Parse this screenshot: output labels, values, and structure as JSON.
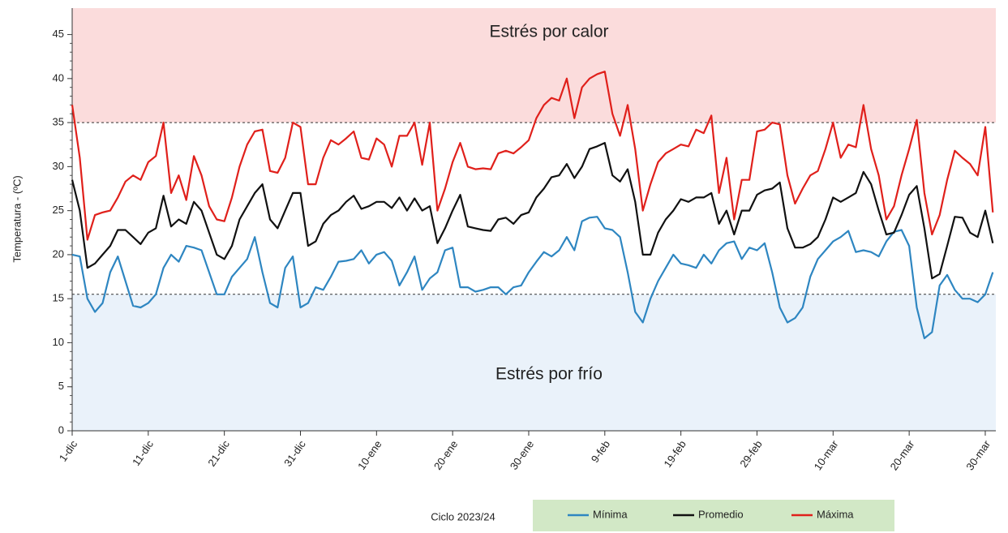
{
  "chart_data": {
    "type": "line",
    "ylabel": "Temperatura - (ºC)",
    "xlabel": "Ciclo 2023/24",
    "ylim": [
      0,
      48
    ],
    "yticks": [
      0,
      5,
      10,
      15,
      20,
      25,
      30,
      35,
      40,
      45
    ],
    "bands": [
      {
        "label": "Estrés por calor",
        "from": 35,
        "to": 48,
        "color": "#fbdcdc"
      },
      {
        "label": "Estrés por frío",
        "from": 0,
        "to": 15.5,
        "color": "#eaf2fa"
      }
    ],
    "legend_color": "#d2e8c6",
    "categories": [
      "1-dic",
      null,
      null,
      null,
      null,
      null,
      null,
      null,
      null,
      null,
      "11-dic",
      null,
      null,
      null,
      null,
      null,
      null,
      null,
      null,
      null,
      "21-dic",
      null,
      null,
      null,
      null,
      null,
      null,
      null,
      null,
      null,
      "31-dic",
      null,
      null,
      null,
      null,
      null,
      null,
      null,
      null,
      null,
      "10-ene",
      null,
      null,
      null,
      null,
      null,
      null,
      null,
      null,
      null,
      "20-ene",
      null,
      null,
      null,
      null,
      null,
      null,
      null,
      null,
      null,
      "30-ene",
      null,
      null,
      null,
      null,
      null,
      null,
      null,
      null,
      null,
      "9-feb",
      null,
      null,
      null,
      null,
      null,
      null,
      null,
      null,
      null,
      "19-feb",
      null,
      null,
      null,
      null,
      null,
      null,
      null,
      null,
      null,
      "29-feb",
      null,
      null,
      null,
      null,
      null,
      null,
      null,
      null,
      null,
      "10-mar",
      null,
      null,
      null,
      null,
      null,
      null,
      null,
      null,
      null,
      "20-mar",
      null,
      null,
      null,
      null,
      null,
      null,
      null,
      null,
      null,
      "30-mar",
      null
    ],
    "series": [
      {
        "name": "Mínima",
        "color": "#2e86c1",
        "values": [
          20,
          19.8,
          15,
          13.5,
          14.5,
          18,
          19.8,
          17,
          14.2,
          14,
          14.5,
          15.5,
          18.5,
          20,
          19.2,
          21,
          20.8,
          20.5,
          18,
          15.5,
          15.5,
          17.5,
          18.5,
          19.5,
          22,
          18,
          14.5,
          14,
          18.5,
          19.8,
          14,
          14.5,
          16.3,
          16,
          17.5,
          19.2,
          19.3,
          19.5,
          20.5,
          19,
          20,
          20.3,
          19.3,
          16.5,
          18,
          19.8,
          16,
          17.3,
          18,
          20.5,
          20.8,
          16.3,
          16.3,
          15.8,
          16,
          16.3,
          16.3,
          15.5,
          16.3,
          16.5,
          18,
          19.2,
          20.3,
          19.8,
          20.5,
          22,
          20.5,
          23.8,
          24.2,
          24.3,
          23,
          22.8,
          22,
          18,
          13.5,
          12.3,
          15,
          17,
          18.5,
          20,
          19,
          18.8,
          18.5,
          20,
          19,
          20.5,
          21.3,
          21.5,
          19.5,
          20.8,
          20.5,
          21.3,
          18,
          14,
          12.3,
          12.8,
          14,
          17.5,
          19.5,
          20.5,
          21.5,
          22,
          22.7,
          20.3,
          20.5,
          20.3,
          19.8,
          21.5,
          22.6,
          22.8,
          21,
          14,
          10.5,
          11.2,
          16.5,
          17.7,
          16,
          15,
          15,
          14.6,
          15.5,
          18
        ]
      },
      {
        "name": "Promedio",
        "color": "#111111",
        "values": [
          28.5,
          25,
          18.5,
          19,
          20,
          21,
          22.8,
          22.8,
          22,
          21.2,
          22.5,
          23,
          26.7,
          23.2,
          24,
          23.5,
          26,
          25,
          22.5,
          20,
          19.5,
          21,
          24,
          25.5,
          27,
          28,
          24,
          23,
          25,
          27,
          27,
          21,
          21.5,
          23.5,
          24.5,
          25,
          26,
          26.7,
          25.2,
          25.5,
          26,
          26,
          25.3,
          26.5,
          25,
          26.4,
          25,
          25.5,
          21.3,
          23,
          25,
          26.8,
          23.2,
          23,
          22.8,
          22.7,
          24,
          24.2,
          23.5,
          24.5,
          24.8,
          26.5,
          27.5,
          28.8,
          29,
          30.3,
          28.7,
          30,
          32,
          32.3,
          32.7,
          29,
          28.3,
          29.7,
          26,
          20,
          20,
          22.5,
          24,
          25,
          26.3,
          26,
          26.5,
          26.5,
          27,
          23.5,
          25,
          22.3,
          25,
          25,
          26.8,
          27.3,
          27.5,
          28.2,
          23,
          20.8,
          20.8,
          21.2,
          22,
          24,
          26.5,
          26,
          26.5,
          27,
          29.4,
          28,
          25,
          22.3,
          22.5,
          24.5,
          26.8,
          27.8,
          23,
          17.3,
          17.8,
          21,
          24.3,
          24.2,
          22.5,
          22,
          25,
          21.3
        ]
      },
      {
        "name": "Máxima",
        "color": "#e0201b",
        "values": [
          37,
          31,
          21.7,
          24.5,
          24.8,
          25,
          26.5,
          28.3,
          29,
          28.5,
          30.5,
          31.2,
          35,
          27,
          29,
          26.2,
          31.2,
          29,
          25.5,
          24,
          23.8,
          26.5,
          30,
          32.5,
          34,
          34.2,
          29.5,
          29.3,
          31,
          35,
          34.5,
          28,
          28,
          31,
          33,
          32.5,
          33.2,
          34,
          31,
          30.8,
          33.2,
          32.5,
          30,
          33.5,
          33.5,
          35,
          30.2,
          35,
          25,
          27.5,
          30.5,
          32.7,
          30,
          29.7,
          29.8,
          29.7,
          31.5,
          31.8,
          31.5,
          32.2,
          33,
          35.5,
          37,
          37.8,
          37.5,
          40,
          35.5,
          39,
          40,
          40.5,
          40.8,
          36,
          33.5,
          37,
          32,
          25,
          28,
          30.5,
          31.5,
          32,
          32.5,
          32.3,
          34.2,
          33.8,
          35.8,
          27,
          31,
          24,
          28.5,
          28.5,
          34,
          34.2,
          35,
          34.8,
          29,
          25.8,
          27.5,
          29,
          29.5,
          32,
          35,
          31,
          32.5,
          32.2,
          37,
          32,
          29,
          24,
          25.5,
          29,
          32,
          35.3,
          27,
          22.3,
          24.5,
          28.5,
          31.8,
          31,
          30.3,
          29,
          34.5,
          24.8
        ]
      }
    ]
  }
}
